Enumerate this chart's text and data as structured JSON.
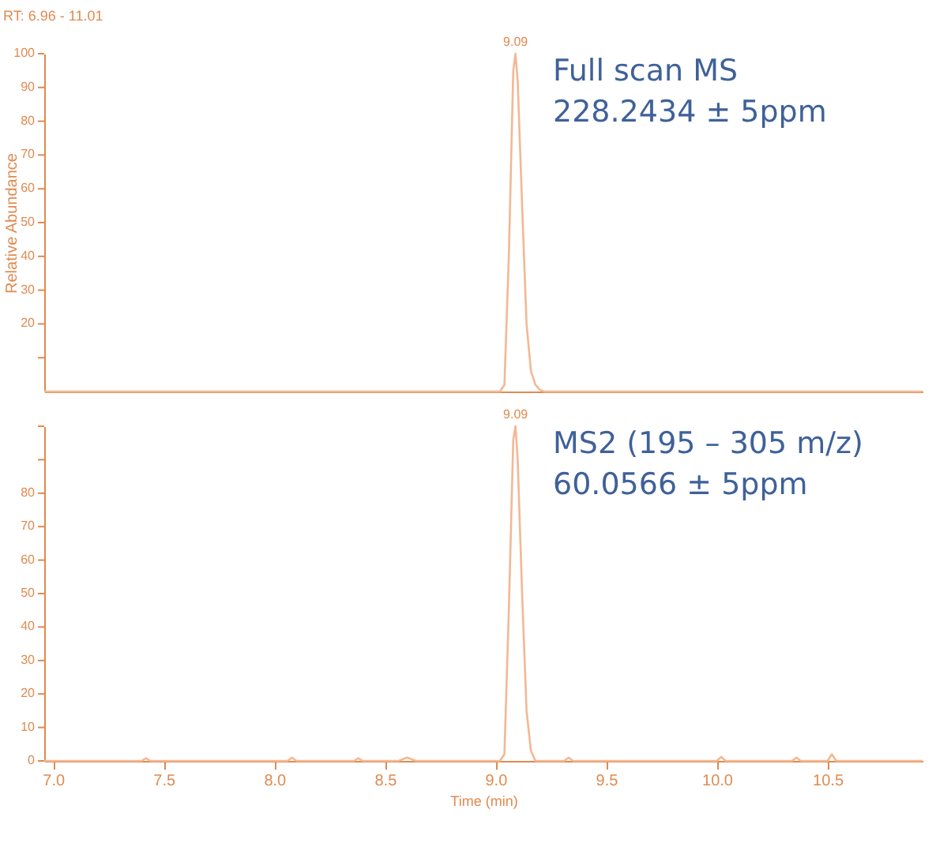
{
  "chart_data": [
    {
      "type": "line",
      "title": "RT: 6.96 - 11.01",
      "ylabel": "Relative Abundance",
      "x": [
        6.96,
        9.02,
        9.04,
        9.06,
        9.08,
        9.09,
        9.1,
        9.12,
        9.14,
        9.16,
        9.18,
        9.2,
        9.22,
        10.93
      ],
      "series": [
        {
          "color": "#f2b894",
          "values": [
            0,
            0,
            2,
            40,
            95,
            100,
            92,
            55,
            20,
            6,
            2,
            0.5,
            0,
            0
          ]
        }
      ],
      "xlim": [
        6.96,
        10.93
      ],
      "ylim": [
        0,
        100
      ],
      "yticks": [
        {
          "value": 10,
          "label": null
        },
        20,
        30,
        40,
        50,
        60,
        70,
        80,
        90,
        100
      ],
      "tick_labels": "y",
      "grid": false,
      "annotations": [
        "Full scan MS",
        "228.2434 ± 5ppm",
        {
          "text": "9.09",
          "x": 9.09,
          "y": 100
        }
      ]
    },
    {
      "type": "line",
      "xlabel": "Time (min)",
      "x": [
        6.96,
        7.4,
        7.42,
        7.44,
        8.06,
        8.08,
        8.1,
        8.36,
        8.38,
        8.4,
        8.56,
        8.6,
        8.64,
        9.02,
        9.04,
        9.06,
        9.08,
        9.09,
        9.1,
        9.12,
        9.14,
        9.16,
        9.18,
        9.31,
        9.33,
        9.35,
        10.0,
        10.02,
        10.04,
        10.34,
        10.36,
        10.38,
        10.5,
        10.52,
        10.54,
        10.93
      ],
      "series": [
        {
          "color": "#f2b894",
          "values": [
            0,
            0,
            0.8,
            0,
            0,
            1,
            0,
            0,
            0.8,
            0,
            0,
            1,
            0,
            0,
            2,
            45,
            96,
            100,
            90,
            50,
            15,
            3,
            0,
            0,
            1,
            0,
            0,
            1.2,
            0,
            0,
            1,
            0,
            0,
            2,
            0,
            0
          ]
        }
      ],
      "xlim": [
        6.96,
        10.93
      ],
      "ylim": [
        0,
        100
      ],
      "xticks": [
        {
          "value": 7,
          "label": "7.0"
        },
        7.5,
        {
          "value": 8,
          "label": "8.0"
        },
        8.5,
        {
          "value": 9,
          "label": "9.0"
        },
        9.5,
        {
          "value": 10,
          "label": "10.0"
        },
        10.5
      ],
      "yticks": [
        0,
        10,
        20,
        30,
        40,
        50,
        60,
        70,
        80,
        {
          "value": 90,
          "label": null
        },
        {
          "value": 100,
          "label": null
        }
      ],
      "grid": false,
      "annotations": [
        "MS2 (195 – 305 m/z)",
        "60.0566 ± 5ppm",
        {
          "text": "9.09",
          "x": 9.09,
          "y": 100
        }
      ]
    }
  ]
}
